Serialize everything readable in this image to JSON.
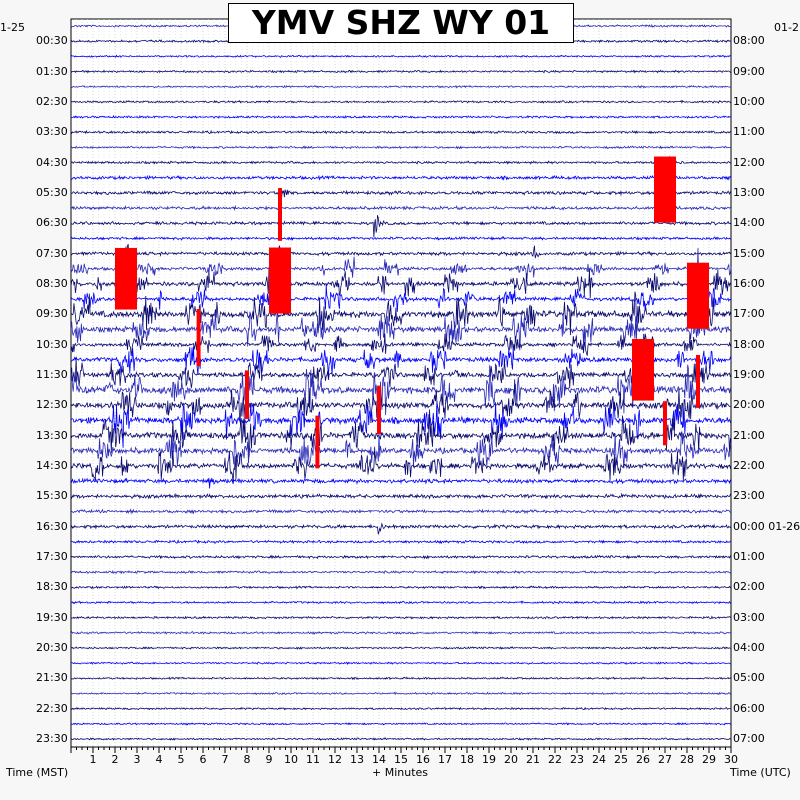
{
  "title": "YMV SHZ WY 01",
  "date_left": "1-25",
  "date_right": "01-2",
  "xlabel_left": "Time (MST)",
  "xlabel_center": "+ Minutes",
  "xlabel_right": "Time (UTC)",
  "colors": {
    "trace_dark": "#0a0a6e",
    "trace_mid": "#2a2ab8",
    "trace_blue": "#0000ff",
    "clip_red": "#ff0000",
    "background": "#f7f7f7",
    "plot_bg": "#ffffff"
  },
  "chart_data": {
    "type": "line",
    "title": "YMV SHZ WY 01",
    "xlabel": "+ Minutes",
    "ylabel_left": "Time (MST)",
    "ylabel_right": "Time (UTC)",
    "x_ticks": [
      "1",
      "2",
      "3",
      "4",
      "5",
      "6",
      "7",
      "8",
      "9",
      "10",
      "11",
      "12",
      "13",
      "14",
      "15",
      "16",
      "17",
      "18",
      "19",
      "20",
      "21",
      "22",
      "23",
      "24",
      "25",
      "26",
      "27",
      "28",
      "29",
      "30"
    ],
    "xlim": [
      0,
      30
    ],
    "rows_per_hour": 2,
    "row_count": 48,
    "left_tick_labels": [
      "00:30",
      "01:30",
      "02:30",
      "03:30",
      "04:30",
      "05:30",
      "06:30",
      "07:30",
      "08:30",
      "09:30",
      "10:30",
      "11:30",
      "12:30",
      "13:30",
      "14:30",
      "15:30",
      "16:30",
      "17:30",
      "18:30",
      "19:30",
      "20:30",
      "21:30",
      "22:30",
      "23:30"
    ],
    "right_tick_labels": [
      "08:00",
      "09:00",
      "10:00",
      "11:00",
      "12:00",
      "13:00",
      "14:00",
      "15:00",
      "16:00",
      "17:00",
      "18:00",
      "19:00",
      "20:00",
      "21:00",
      "22:00",
      "23:00",
      "00:00 01-26",
      "01:00",
      "02:00",
      "03:00",
      "04:00",
      "05:00",
      "06:00",
      "07:00"
    ],
    "row_amplitudes": [
      0.8,
      0.9,
      0.7,
      0.8,
      0.7,
      0.8,
      0.8,
      0.9,
      0.8,
      0.9,
      1.2,
      1.3,
      1.2,
      1.2,
      1.0,
      1.3,
      1.2,
      1.6,
      1.4,
      2.5,
      2.2,
      1.4,
      1.8,
      1.8,
      2.8,
      2.4,
      2.5,
      2.5,
      2.2,
      2.0,
      1.6,
      1.4,
      1.2,
      1.3,
      1.0,
      1.0,
      0.9,
      0.8,
      0.8,
      0.8,
      0.8,
      0.7,
      0.7,
      0.7,
      0.7,
      0.7,
      0.7,
      0.7
    ],
    "busy_rows": [
      16,
      17,
      18,
      19,
      20,
      21,
      22,
      23,
      24,
      25,
      26,
      27,
      28,
      29
    ],
    "events": [
      {
        "row": 9,
        "minute": 27.0,
        "amp": 30,
        "clip": true
      },
      {
        "row": 10,
        "minute": 26.8,
        "amp": 22,
        "clip": false
      },
      {
        "row": 11,
        "minute": 9.5,
        "amp": 24,
        "clip": true
      },
      {
        "row": 13,
        "minute": 13.8,
        "amp": 20,
        "clip": false
      },
      {
        "row": 15,
        "minute": 2.5,
        "amp": 28,
        "clip": true
      },
      {
        "row": 15,
        "minute": 9.5,
        "amp": 30,
        "clip": true
      },
      {
        "row": 15,
        "minute": 21.0,
        "amp": 14,
        "clip": false
      },
      {
        "row": 16,
        "minute": 28.5,
        "amp": 30,
        "clip": true
      },
      {
        "row": 19,
        "minute": 5.8,
        "amp": 26,
        "clip": true
      },
      {
        "row": 20,
        "minute": 10.5,
        "amp": 24,
        "clip": false
      },
      {
        "row": 21,
        "minute": 26.0,
        "amp": 28,
        "clip": true
      },
      {
        "row": 22,
        "minute": 28.5,
        "amp": 24,
        "clip": true
      },
      {
        "row": 23,
        "minute": 8.0,
        "amp": 22,
        "clip": true
      },
      {
        "row": 24,
        "minute": 14.0,
        "amp": 22,
        "clip": true
      },
      {
        "row": 25,
        "minute": 27.0,
        "amp": 20,
        "clip": true
      },
      {
        "row": 26,
        "minute": 11.2,
        "amp": 24,
        "clip": true
      },
      {
        "row": 27,
        "minute": 1.5,
        "amp": 24,
        "clip": false
      },
      {
        "row": 30,
        "minute": 6.3,
        "amp": 12,
        "clip": false
      },
      {
        "row": 33,
        "minute": 14.0,
        "amp": 12,
        "clip": false
      }
    ]
  }
}
